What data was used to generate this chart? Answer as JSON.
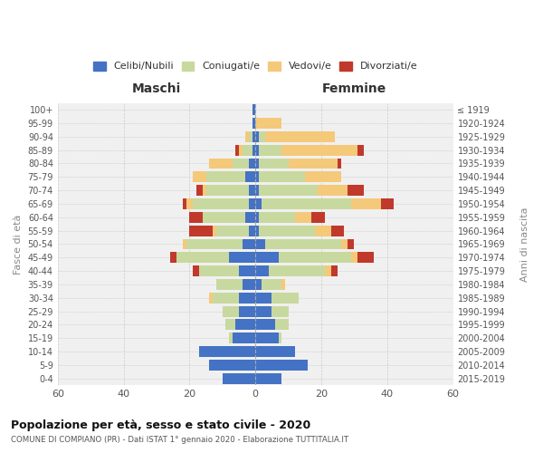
{
  "age_groups": [
    "0-4",
    "5-9",
    "10-14",
    "15-19",
    "20-24",
    "25-29",
    "30-34",
    "35-39",
    "40-44",
    "45-49",
    "50-54",
    "55-59",
    "60-64",
    "65-69",
    "70-74",
    "75-79",
    "80-84",
    "85-89",
    "90-94",
    "95-99",
    "100+"
  ],
  "birth_years": [
    "2015-2019",
    "2010-2014",
    "2005-2009",
    "2000-2004",
    "1995-1999",
    "1990-1994",
    "1985-1989",
    "1980-1984",
    "1975-1979",
    "1970-1974",
    "1965-1969",
    "1960-1964",
    "1955-1959",
    "1950-1954",
    "1945-1949",
    "1940-1944",
    "1935-1939",
    "1930-1934",
    "1925-1929",
    "1920-1924",
    "≤ 1919"
  ],
  "maschi": {
    "celibi": [
      10,
      14,
      17,
      7,
      6,
      5,
      5,
      4,
      5,
      8,
      4,
      2,
      3,
      2,
      2,
      3,
      2,
      1,
      1,
      1,
      1
    ],
    "coniugati": [
      0,
      0,
      0,
      1,
      3,
      5,
      8,
      8,
      12,
      16,
      17,
      10,
      13,
      17,
      13,
      12,
      5,
      3,
      1,
      0,
      0
    ],
    "vedovi": [
      0,
      0,
      0,
      0,
      0,
      0,
      1,
      0,
      0,
      0,
      1,
      1,
      0,
      2,
      1,
      4,
      7,
      1,
      1,
      0,
      0
    ],
    "divorziati": [
      0,
      0,
      0,
      0,
      0,
      0,
      0,
      0,
      2,
      2,
      0,
      7,
      4,
      1,
      2,
      0,
      0,
      1,
      0,
      0,
      0
    ]
  },
  "femmine": {
    "nubili": [
      8,
      16,
      12,
      7,
      6,
      5,
      5,
      2,
      4,
      7,
      3,
      1,
      1,
      2,
      1,
      1,
      1,
      1,
      1,
      0,
      0
    ],
    "coniugate": [
      0,
      0,
      0,
      1,
      4,
      5,
      8,
      6,
      17,
      22,
      23,
      17,
      11,
      27,
      18,
      14,
      9,
      7,
      2,
      0,
      0
    ],
    "vedove": [
      0,
      0,
      0,
      0,
      0,
      0,
      0,
      1,
      2,
      2,
      2,
      5,
      5,
      9,
      9,
      11,
      15,
      23,
      21,
      8,
      0
    ],
    "divorziate": [
      0,
      0,
      0,
      0,
      0,
      0,
      0,
      0,
      2,
      5,
      2,
      4,
      4,
      4,
      5,
      0,
      1,
      2,
      0,
      0,
      0
    ]
  },
  "colors": {
    "celibi_nubili": "#4472C4",
    "coniugati": "#c8d9a0",
    "vedovi": "#f5c97a",
    "divorziati": "#c0392b"
  },
  "xlim": 60,
  "title": "Popolazione per età, sesso e stato civile - 2020",
  "subtitle": "COMUNE DI COMPIANO (PR) - Dati ISTAT 1° gennaio 2020 - Elaborazione TUTTITALIA.IT",
  "ylabel_left": "Fasce di età",
  "ylabel_right": "Anni di nascita",
  "xlabel_maschi": "Maschi",
  "xlabel_femmine": "Femmine",
  "legend_labels": [
    "Celibi/Nubili",
    "Coniugati/e",
    "Vedovi/e",
    "Divorziati/e"
  ],
  "bg_color": "#f0f0f0",
  "bar_height": 0.8
}
